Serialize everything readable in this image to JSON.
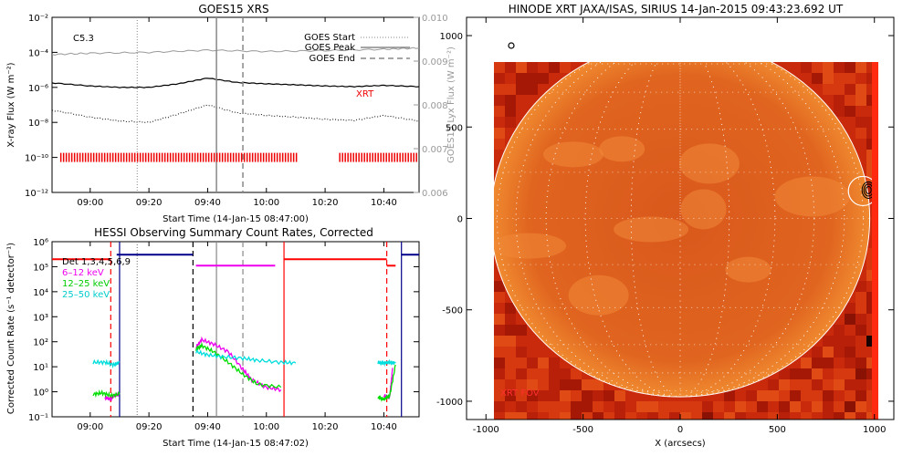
{
  "chart_data": [
    {
      "type": "line",
      "title": "GOES15 XRS",
      "xlabel": "Start Time (14-Jan-15 08:47:00)",
      "ylabel": "X-ray Flux (W m⁻²)",
      "ylabel2": "GOES15 Lyx Flux (W m⁻²)",
      "x_ticks": [
        "09:00",
        "09:20",
        "09:40",
        "10:00",
        "10:20",
        "10:40"
      ],
      "y_ticks": [
        "10⁻¹²",
        "10⁻¹⁰",
        "10⁻⁸",
        "10⁻⁶",
        "10⁻⁴",
        "10⁻²"
      ],
      "y2_ticks": [
        "0.006",
        "0.007",
        "0.008",
        "0.009",
        "0.010"
      ],
      "y_scale": "log",
      "ylim": [
        1e-12,
        0.01
      ],
      "y2lim": [
        0.006,
        0.01
      ],
      "annotation": "C5.3",
      "xrt_label": "XRT",
      "legend": [
        {
          "label": "GOES Start",
          "style": "dotted"
        },
        {
          "label": "GOES Peak",
          "style": "solid"
        },
        {
          "label": "GOES End",
          "style": "dashed"
        }
      ],
      "series": [
        {
          "color": "#000000",
          "x": [
            "08:47",
            "09:00",
            "09:10",
            "09:20",
            "09:30",
            "09:40",
            "09:50",
            "10:00",
            "10:10",
            "10:20",
            "10:30",
            "10:40",
            "10:52"
          ],
          "y": [
            1.8e-06,
            1.2e-06,
            1e-06,
            1e-06,
            1.6e-06,
            3.4e-06,
            1.9e-06,
            1.6e-06,
            1.4e-06,
            1.2e-06,
            1.1e-06,
            1.3e-06,
            1.1e-06
          ]
        },
        {
          "color": "#000000",
          "x": [
            "08:47",
            "09:00",
            "09:10",
            "09:20",
            "09:30",
            "09:40",
            "09:50",
            "10:00",
            "10:10",
            "10:20",
            "10:30",
            "10:40",
            "10:52"
          ],
          "y": [
            5e-08,
            2e-08,
            1.2e-08,
            1e-08,
            3e-08,
            1e-07,
            3.5e-08,
            2.5e-08,
            2e-08,
            1.5e-08,
            1.3e-08,
            2.5e-08,
            1.2e-08
          ]
        },
        {
          "color": "#999999",
          "x": [
            "08:47",
            "09:00",
            "09:20",
            "09:40",
            "10:00",
            "10:20",
            "10:40",
            "10:52"
          ],
          "y": [
            0.00915,
            0.00918,
            0.0092,
            0.00925,
            0.00922,
            0.00924,
            0.00927,
            0.0093
          ]
        }
      ],
      "event_times": {
        "start": "09:16",
        "peak": "09:43",
        "end": "09:52"
      },
      "xrt_coverage": [
        [
          "08:50",
          "10:11"
        ],
        [
          "10:25",
          "10:52"
        ]
      ]
    },
    {
      "type": "line",
      "title": "HESSI Observing Summary Count Rates, Corrected",
      "xlabel": "Start Time (14-Jan-15 08:47:02)",
      "ylabel": "Corrected Count Rate (s⁻¹ detector⁻¹)",
      "x_ticks": [
        "09:00",
        "09:20",
        "09:40",
        "10:00",
        "10:20",
        "10:40"
      ],
      "y_ticks": [
        "10⁻¹",
        "10⁰",
        "10¹",
        "10²",
        "10³",
        "10⁴",
        "10⁵",
        "10⁶"
      ],
      "y_scale": "log",
      "ylim": [
        0.1,
        1000000.0
      ],
      "legend": [
        {
          "label": "Det 1,3,4,5,6,9",
          "color": "#000000"
        },
        {
          "label": "6–12 keV",
          "color": "#ee00ee"
        },
        {
          "label": "12–25 keV",
          "color": "#00dd00"
        },
        {
          "label": "25–50 keV",
          "color": "#00dddd"
        }
      ],
      "series": [
        {
          "color": "#ee00ee",
          "segments": [
            {
              "x": [
                "09:05",
                "09:07",
                "09:08",
                "09:10"
              ],
              "y": [
                0.6,
                0.5,
                0.7,
                0.8
              ]
            },
            {
              "x": [
                "09:36",
                "09:38",
                "09:42",
                "09:47",
                "09:52",
                "09:55",
                "10:00",
                "10:05"
              ],
              "y": [
                60,
                120,
                80,
                40,
                8,
                3,
                1.5,
                1.2
              ]
            },
            {
              "x": [
                "10:40",
                "10:42",
                "10:43"
              ],
              "y": [
                0.7,
                0.6,
                9
              ]
            }
          ]
        },
        {
          "color": "#00dd00",
          "segments": [
            {
              "x": [
                "09:01",
                "09:04",
                "09:07",
                "09:10"
              ],
              "y": [
                0.8,
                0.9,
                0.7,
                0.8
              ]
            },
            {
              "x": [
                "09:36",
                "09:38",
                "09:42",
                "09:47",
                "09:52",
                "09:57",
                "10:05"
              ],
              "y": [
                50,
                70,
                40,
                15,
                5,
                2,
                1.5
              ]
            },
            {
              "x": [
                "10:38",
                "10:40",
                "10:42",
                "10:44"
              ],
              "y": [
                0.6,
                0.5,
                0.7,
                12
              ]
            }
          ]
        },
        {
          "color": "#00dddd",
          "segments": [
            {
              "x": [
                "09:01",
                "09:05",
                "09:08",
                "09:10"
              ],
              "y": [
                15,
                15,
                12,
                15
              ]
            },
            {
              "x": [
                "09:36",
                "09:40",
                "09:45",
                "09:52",
                "09:57",
                "10:05",
                "10:10"
              ],
              "y": [
                40,
                30,
                25,
                22,
                18,
                15,
                14
              ]
            },
            {
              "x": [
                "10:38",
                "10:40",
                "10:42",
                "10:44"
              ],
              "y": [
                15,
                14,
                15,
                14
              ]
            }
          ]
        },
        {
          "color": "#ff0000",
          "segments": [
            {
              "x": [
                "08:47",
                "09:07"
              ],
              "y": [
                200000.0,
                200000.0
              ]
            },
            {
              "x": [
                "10:06",
                "10:41"
              ],
              "y": [
                200000.0,
                200000.0
              ]
            },
            {
              "x": [
                "10:41",
                "10:44"
              ],
              "y": [
                110000.0,
                110000.0
              ]
            }
          ]
        },
        {
          "color": "#ee00ee",
          "segments": [
            {
              "x": [
                "09:36",
                "10:03"
              ],
              "y": [
                110000.0,
                110000.0
              ]
            }
          ]
        },
        {
          "color": "#000088",
          "segments": [
            {
              "x": [
                "09:09",
                "09:35"
              ],
              "y": [
                300000.0,
                300000.0
              ]
            },
            {
              "x": [
                "10:46",
                "10:52"
              ],
              "y": [
                300000.0,
                300000.0
              ]
            }
          ]
        }
      ],
      "vlines": [
        {
          "x": "09:07",
          "color": "#ff0000",
          "style": "dashed"
        },
        {
          "x": "09:10",
          "color": "#000088",
          "style": "solid"
        },
        {
          "x": "09:16",
          "color": "#888888",
          "style": "dotted"
        },
        {
          "x": "09:35",
          "color": "#000000",
          "style": "dashed"
        },
        {
          "x": "09:43",
          "color": "#888888",
          "style": "solid"
        },
        {
          "x": "09:52",
          "color": "#888888",
          "style": "dashed"
        },
        {
          "x": "10:06",
          "color": "#ff0000",
          "style": "solid"
        },
        {
          "x": "10:41",
          "color": "#ff0000",
          "style": "dashed"
        },
        {
          "x": "10:46",
          "color": "#000088",
          "style": "solid"
        }
      ]
    },
    {
      "type": "heatmap",
      "title": "HINODE XRT JAXA/ISAS, SIRIUS 14-Jan-2015 09:43:23.692 UT",
      "xlabel": "X (arcsecs)",
      "ylabel": "",
      "x_ticks": [
        "-1000",
        "-500",
        "0",
        "500",
        "1000"
      ],
      "y_ticks": [
        "-1000",
        "-500",
        "0",
        "500",
        "1000"
      ],
      "xlim": [
        -1100,
        1100
      ],
      "ylim": [
        -1100,
        1100
      ],
      "solar_radius": 976,
      "fov_label": "XRT FOV",
      "flare_location": [
        960,
        150
      ]
    }
  ]
}
